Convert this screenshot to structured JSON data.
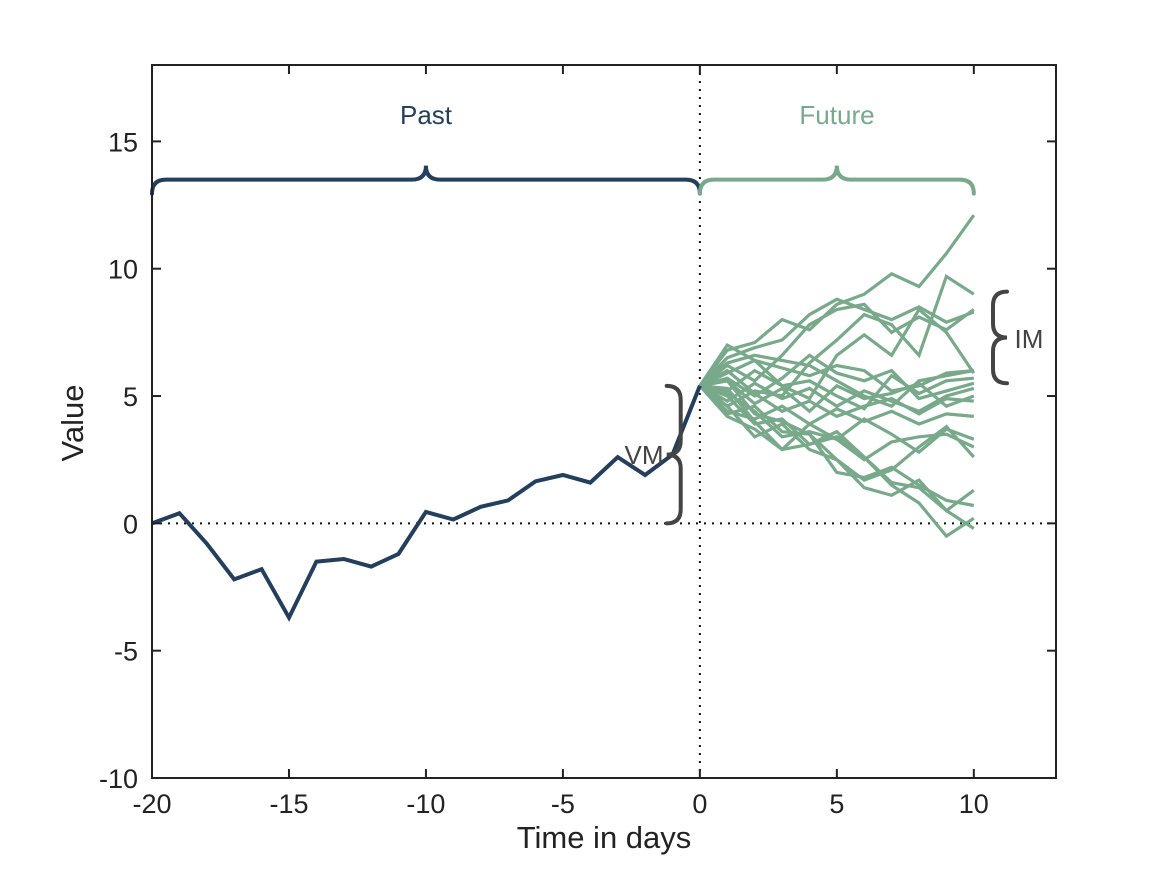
{
  "chart_data": {
    "type": "line",
    "title": "",
    "xlabel": "Time in days",
    "ylabel": "Value",
    "xlim": [
      -20,
      13
    ],
    "ylim": [
      -10,
      18
    ],
    "xticks": [
      -20,
      -15,
      -10,
      -5,
      0,
      5,
      10
    ],
    "yticks": [
      -10,
      -5,
      0,
      5,
      10,
      15
    ],
    "xtick_labels": [
      "-20",
      "-15",
      "-10",
      "-5",
      "0",
      "5",
      "10"
    ],
    "ytick_labels": [
      "-10",
      "-5",
      "0",
      "5",
      "10",
      "15"
    ],
    "grid": false,
    "reference_lines": [
      {
        "orientation": "horizontal",
        "value": 0,
        "style": "dotted"
      },
      {
        "orientation": "vertical",
        "value": 0,
        "style": "dotted"
      }
    ],
    "colors": {
      "past": "#243f5c",
      "future": "#78a98a",
      "brace": "#444444",
      "axis": "#222222"
    },
    "series": [
      {
        "name": "Past",
        "color": "#243f5c",
        "x": [
          -20,
          -19,
          -18,
          -17,
          -16,
          -15,
          -14,
          -13,
          -12,
          -11,
          -10,
          -9,
          -8,
          -7,
          -6,
          -5,
          -4,
          -3,
          -2,
          -1,
          0
        ],
        "values": [
          0,
          0.4,
          -0.8,
          -2.2,
          -1.8,
          -3.7,
          -1.5,
          -1.4,
          -1.7,
          -1.2,
          0.45,
          0.15,
          0.65,
          0.9,
          1.65,
          1.9,
          1.6,
          2.6,
          1.9,
          2.7,
          5.4
        ]
      }
    ],
    "future_simulations": {
      "name": "Future",
      "color": "#78a98a",
      "x": [
        0,
        1,
        2,
        3,
        4,
        5,
        6,
        7,
        8,
        9,
        10
      ],
      "paths": [
        [
          5.4,
          6.8,
          7.1,
          8.0,
          7.6,
          8.6,
          9.0,
          9.8,
          9.3,
          10.6,
          12.1
        ],
        [
          5.4,
          6.5,
          6.9,
          7.2,
          8.2,
          8.8,
          8.4,
          8.0,
          8.5,
          7.9,
          8.3
        ],
        [
          5.4,
          6.2,
          5.6,
          6.6,
          7.8,
          8.4,
          8.6,
          7.5,
          8.1,
          7.6,
          8.4
        ],
        [
          5.4,
          4.6,
          5.2,
          5.0,
          6.3,
          7.2,
          8.2,
          7.8,
          6.6,
          9.7,
          9.0
        ],
        [
          5.4,
          7.0,
          6.4,
          5.4,
          4.9,
          6.6,
          7.4,
          6.6,
          8.4,
          7.5,
          5.9
        ],
        [
          5.4,
          5.9,
          6.4,
          6.1,
          5.8,
          6.2,
          6.0,
          5.2,
          5.4,
          5.9,
          6.0
        ],
        [
          5.4,
          5.2,
          6.0,
          5.4,
          5.6,
          5.0,
          4.5,
          5.8,
          5.1,
          5.6,
          5.7
        ],
        [
          5.4,
          4.8,
          5.5,
          4.9,
          5.3,
          4.6,
          5.2,
          4.8,
          4.4,
          5.0,
          5.3
        ],
        [
          5.4,
          5.6,
          4.7,
          5.3,
          4.4,
          5.4,
          4.9,
          5.1,
          5.5,
          4.6,
          5.0
        ],
        [
          5.4,
          6.0,
          5.1,
          4.4,
          4.8,
          4.2,
          4.6,
          4.9,
          4.3,
          4.9,
          4.8
        ],
        [
          5.4,
          4.4,
          4.1,
          4.6,
          3.9,
          4.5,
          4.0,
          4.4,
          3.9,
          4.3,
          4.2
        ],
        [
          5.4,
          5.1,
          4.4,
          3.4,
          3.6,
          3.3,
          4.1,
          3.5,
          2.8,
          3.7,
          3.3
        ],
        [
          5.4,
          4.2,
          3.7,
          2.9,
          3.9,
          3.3,
          2.5,
          3.2,
          3.4,
          3.5,
          3.0
        ],
        [
          5.4,
          5.6,
          4.3,
          4.0,
          3.5,
          2.5,
          1.7,
          2.1,
          3.0,
          3.8,
          2.6
        ],
        [
          5.4,
          4.6,
          3.4,
          3.9,
          2.9,
          2.5,
          1.4,
          1.1,
          1.7,
          0.5,
          1.3
        ],
        [
          5.4,
          4.3,
          4.6,
          3.6,
          3.5,
          2.0,
          1.8,
          2.2,
          1.5,
          0.9,
          0.7
        ],
        [
          5.4,
          5.0,
          3.9,
          4.1,
          3.1,
          3.4,
          2.6,
          1.5,
          0.8,
          -0.5,
          0.2
        ],
        [
          5.4,
          5.3,
          4.0,
          2.9,
          3.1,
          3.6,
          2.6,
          1.6,
          1.4,
          0.5,
          -0.2
        ],
        [
          5.4,
          6.3,
          6.6,
          6.4,
          6.2,
          5.6,
          5.0,
          4.6,
          5.6,
          5.8,
          6.0
        ],
        [
          5.4,
          5.7,
          5.0,
          5.7,
          6.6,
          5.9,
          5.6,
          6.0,
          4.9,
          5.2,
          5.5
        ]
      ]
    },
    "annotations": [
      {
        "text": "Past",
        "type": "brace",
        "orientation": "horizontal",
        "from_x": -20,
        "to_x": 0,
        "y": 13.5,
        "color": "#243f5c"
      },
      {
        "text": "Future",
        "type": "brace",
        "orientation": "horizontal",
        "from_x": 0,
        "to_x": 10,
        "y": 13.5,
        "color": "#78a98a"
      },
      {
        "text": "VM",
        "type": "brace",
        "orientation": "vertical",
        "x": -0.7,
        "from_y": 0,
        "to_y": 5.4,
        "color": "#444444"
      },
      {
        "text": "IM",
        "type": "brace",
        "orientation": "vertical",
        "x": 10.7,
        "from_y": 5.5,
        "to_y": 9.1,
        "color": "#444444"
      }
    ]
  },
  "labels": {
    "xlabel": "Time in days",
    "ylabel": "Value",
    "past": "Past",
    "future": "Future",
    "vm": "VM",
    "im": "IM"
  }
}
